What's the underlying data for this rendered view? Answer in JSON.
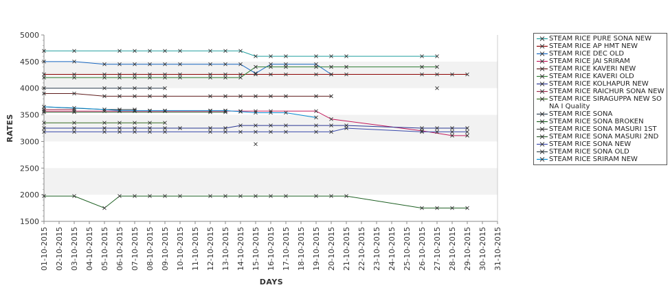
{
  "chart_data": {
    "type": "line",
    "ylabel": "RATES",
    "xlabel": "DAYS",
    "ylim": [
      1500,
      5000
    ],
    "yticks": [
      1500,
      2000,
      2500,
      3000,
      3500,
      4000,
      4500,
      5000
    ],
    "x_categories": [
      "01-10-2015",
      "02-10-2015",
      "03-10-2015",
      "04-10-2015",
      "05-10-2015",
      "06-10-2015",
      "07-10-2015",
      "08-10-2015",
      "09-10-2015",
      "10-10-2015",
      "11-10-2015",
      "12-10-2015",
      "13-10-2015",
      "14-10-2015",
      "15-10-2015",
      "16-10-2015",
      "17-10-2015",
      "18-10-2015",
      "19-10-2015",
      "20-10-2015",
      "21-10-2015",
      "22-10-2015",
      "23-10-2015",
      "24-10-2015",
      "25-10-2015",
      "26-10-2015",
      "27-10-2015",
      "28-10-2015",
      "29-10-2015",
      "30-10-2015",
      "31-10-2015"
    ],
    "grid_bands": true,
    "legend_position": "right",
    "series": [
      {
        "name": " STEAM RICE PURE SONA NEW",
        "color": "#1f9e9e",
        "points": [
          [
            "01-10-2015",
            4700
          ],
          [
            "03-10-2015",
            4700
          ],
          [
            "06-10-2015",
            4700
          ],
          [
            "07-10-2015",
            4700
          ],
          [
            "08-10-2015",
            4700
          ],
          [
            "09-10-2015",
            4700
          ],
          [
            "10-10-2015",
            4700
          ],
          [
            "12-10-2015",
            4700
          ],
          [
            "13-10-2015",
            4700
          ],
          [
            "14-10-2015",
            4700
          ],
          [
            "15-10-2015",
            4600
          ],
          [
            "16-10-2015",
            4600
          ],
          [
            "17-10-2015",
            4600
          ],
          [
            "19-10-2015",
            4600
          ],
          [
            "20-10-2015",
            4600
          ],
          [
            "21-10-2015",
            4600
          ],
          [
            "26-10-2015",
            4600
          ],
          [
            "27-10-2015",
            4600
          ]
        ]
      },
      {
        "name": "STEAM RICE AP HMT NEW",
        "color": "#8b0000",
        "points": [
          [
            "01-10-2015",
            4260
          ],
          [
            "03-10-2015",
            4260
          ],
          [
            "05-10-2015",
            4260
          ],
          [
            "06-10-2015",
            4260
          ],
          [
            "07-10-2015",
            4260
          ],
          [
            "08-10-2015",
            4260
          ],
          [
            "09-10-2015",
            4260
          ],
          [
            "10-10-2015",
            4260
          ],
          [
            "12-10-2015",
            4260
          ],
          [
            "13-10-2015",
            4260
          ],
          [
            "14-10-2015",
            4260
          ],
          [
            "15-10-2015",
            4260
          ],
          [
            "16-10-2015",
            4260
          ],
          [
            "17-10-2015",
            4260
          ],
          [
            "19-10-2015",
            4260
          ],
          [
            "20-10-2015",
            4260
          ],
          [
            "21-10-2015",
            4260
          ],
          [
            "26-10-2015",
            4260
          ],
          [
            "27-10-2015",
            4260
          ],
          [
            "28-10-2015",
            4260
          ],
          [
            "29-10-2015",
            4260
          ]
        ]
      },
      {
        "name": "STEAM RICE DEC OLD",
        "color": "#1565c0",
        "points": [
          [
            "01-10-2015",
            4500
          ],
          [
            "03-10-2015",
            4500
          ],
          [
            "05-10-2015",
            4450
          ],
          [
            "06-10-2015",
            4450
          ],
          [
            "07-10-2015",
            4450
          ],
          [
            "08-10-2015",
            4450
          ],
          [
            "09-10-2015",
            4450
          ],
          [
            "10-10-2015",
            4450
          ],
          [
            "12-10-2015",
            4450
          ],
          [
            "13-10-2015",
            4450
          ],
          [
            "14-10-2015",
            4450
          ],
          [
            "15-10-2015",
            4280
          ],
          [
            "16-10-2015",
            4450
          ],
          [
            "17-10-2015",
            4450
          ],
          [
            "19-10-2015",
            4450
          ],
          [
            "20-10-2015",
            4260
          ]
        ]
      },
      {
        "name": "STEAM RICE JAI SRIRAM",
        "color": "#c2185b",
        "points": [
          [
            "01-10-2015",
            3570
          ],
          [
            "03-10-2015",
            3570
          ],
          [
            "05-10-2015",
            3570
          ],
          [
            "06-10-2015",
            3570
          ],
          [
            "07-10-2015",
            3570
          ],
          [
            "08-10-2015",
            3570
          ],
          [
            "09-10-2015",
            3570
          ],
          [
            "12-10-2015",
            3570
          ],
          [
            "13-10-2015",
            3570
          ],
          [
            "14-10-2015",
            3570
          ],
          [
            "15-10-2015",
            3570
          ],
          [
            "16-10-2015",
            3570
          ],
          [
            "19-10-2015",
            3570
          ],
          [
            "20-10-2015",
            3420
          ],
          [
            "26-10-2015",
            3200
          ],
          [
            "28-10-2015",
            3110
          ],
          [
            "29-10-2015",
            3110
          ]
        ]
      },
      {
        "name": "STEAM RICE KAVERI NEW",
        "color": "#5d1a1a",
        "points": [
          [
            "01-10-2015",
            3900
          ],
          [
            "03-10-2015",
            3900
          ],
          [
            "05-10-2015",
            3850
          ],
          [
            "06-10-2015",
            3850
          ],
          [
            "07-10-2015",
            3850
          ],
          [
            "08-10-2015",
            3850
          ],
          [
            "09-10-2015",
            3850
          ],
          [
            "12-10-2015",
            3850
          ],
          [
            "13-10-2015",
            3850
          ],
          [
            "14-10-2015",
            3850
          ],
          [
            "15-10-2015",
            3850
          ],
          [
            "16-10-2015",
            3850
          ],
          [
            "17-10-2015",
            3850
          ],
          [
            "19-10-2015",
            3850
          ],
          [
            "20-10-2015",
            3850
          ]
        ]
      },
      {
        "name": "STEAM RICE KAVERI OLD",
        "color": "#2e7d32",
        "points": [
          [
            "01-10-2015",
            4200
          ],
          [
            "03-10-2015",
            4200
          ],
          [
            "05-10-2015",
            4200
          ],
          [
            "06-10-2015",
            4200
          ],
          [
            "07-10-2015",
            4200
          ],
          [
            "08-10-2015",
            4200
          ],
          [
            "09-10-2015",
            4200
          ],
          [
            "10-10-2015",
            4200
          ],
          [
            "12-10-2015",
            4200
          ],
          [
            "13-10-2015",
            4200
          ],
          [
            "14-10-2015",
            4200
          ],
          [
            "15-10-2015",
            4400
          ],
          [
            "16-10-2015",
            4400
          ],
          [
            "17-10-2015",
            4400
          ],
          [
            "19-10-2015",
            4400
          ],
          [
            "20-10-2015",
            4400
          ],
          [
            "21-10-2015",
            4400
          ],
          [
            "26-10-2015",
            4400
          ],
          [
            "27-10-2015",
            4400
          ]
        ]
      },
      {
        "name": "STEAM RICE KOLHAPUR NEW",
        "color": "#283593",
        "points": [
          [
            "01-10-2015",
            3250
          ],
          [
            "03-10-2015",
            3250
          ],
          [
            "05-10-2015",
            3250
          ],
          [
            "06-10-2015",
            3250
          ],
          [
            "07-10-2015",
            3250
          ],
          [
            "08-10-2015",
            3250
          ],
          [
            "09-10-2015",
            3250
          ],
          [
            "10-10-2015",
            3250
          ],
          [
            "12-10-2015",
            3250
          ],
          [
            "13-10-2015",
            3250
          ],
          [
            "14-10-2015",
            3300
          ],
          [
            "15-10-2015",
            3300
          ],
          [
            "16-10-2015",
            3300
          ],
          [
            "17-10-2015",
            3300
          ],
          [
            "19-10-2015",
            3300
          ],
          [
            "20-10-2015",
            3300
          ],
          [
            "21-10-2015",
            3300
          ],
          [
            "26-10-2015",
            3250
          ],
          [
            "27-10-2015",
            3250
          ],
          [
            "28-10-2015",
            3250
          ],
          [
            "29-10-2015",
            3250
          ]
        ]
      },
      {
        "name": "STEAM RICE RAICHUR SONA NEW",
        "color": "#9c2a4a",
        "points": [
          [
            "01-10-2015",
            3600
          ],
          [
            "03-10-2015",
            3600
          ]
        ]
      },
      {
        "name": "STEAM RICE SIRAGUPPA NEW SONA I Quality",
        "color": "#33691e",
        "points": [
          [
            "01-10-2015",
            3350
          ],
          [
            "03-10-2015",
            3350
          ],
          [
            "05-10-2015",
            3350
          ],
          [
            "06-10-2015",
            3350
          ],
          [
            "07-10-2015",
            3350
          ],
          [
            "08-10-2015",
            3350
          ],
          [
            "09-10-2015",
            3350
          ]
        ]
      },
      {
        "name": "STEAM RICE SONA",
        "color": "#2c3e50",
        "points": [
          [
            "01-10-2015",
            4000
          ],
          [
            "05-10-2015",
            4000
          ],
          [
            "06-10-2015",
            4000
          ],
          [
            "07-10-2015",
            4000
          ],
          [
            "08-10-2015",
            4000
          ],
          [
            "09-10-2015",
            4000
          ]
        ]
      },
      {
        "name": "STEAM RICE SONA BROKEN",
        "color": "#1b5e20",
        "points": [
          [
            "01-10-2015",
            1975
          ],
          [
            "03-10-2015",
            1975
          ],
          [
            "05-10-2015",
            1750
          ],
          [
            "06-10-2015",
            1975
          ],
          [
            "07-10-2015",
            1975
          ],
          [
            "08-10-2015",
            1975
          ],
          [
            "09-10-2015",
            1975
          ],
          [
            "10-10-2015",
            1975
          ],
          [
            "12-10-2015",
            1975
          ],
          [
            "13-10-2015",
            1975
          ],
          [
            "14-10-2015",
            1975
          ],
          [
            "15-10-2015",
            1975
          ],
          [
            "16-10-2015",
            1975
          ],
          [
            "17-10-2015",
            1975
          ],
          [
            "19-10-2015",
            1975
          ],
          [
            "20-10-2015",
            1975
          ],
          [
            "21-10-2015",
            1975
          ],
          [
            "26-10-2015",
            1750
          ],
          [
            "27-10-2015",
            1750
          ],
          [
            "28-10-2015",
            1750
          ],
          [
            "29-10-2015",
            1750
          ]
        ]
      },
      {
        "name": "STEAM RICE SONA MASURI 1ST",
        "color": "#424242",
        "points": [
          [
            "15-10-2015",
            2950
          ],
          [
            "27-10-2015",
            4000
          ]
        ]
      },
      {
        "name": "STEAM RICE SONA MASURI 2ND",
        "color": "#2e5d2e",
        "points": [
          [
            "01-10-2015",
            3550
          ],
          [
            "03-10-2015",
            3550
          ],
          [
            "12-10-2015",
            3550
          ],
          [
            "13-10-2015",
            3550
          ]
        ]
      },
      {
        "name": "STEAM RICE SONA NEW",
        "color": "#3949ab",
        "points": [
          [
            "01-10-2015",
            3180
          ],
          [
            "03-10-2015",
            3180
          ],
          [
            "05-10-2015",
            3180
          ],
          [
            "06-10-2015",
            3180
          ],
          [
            "07-10-2015",
            3180
          ],
          [
            "08-10-2015",
            3180
          ],
          [
            "09-10-2015",
            3180
          ],
          [
            "12-10-2015",
            3180
          ],
          [
            "13-10-2015",
            3180
          ],
          [
            "14-10-2015",
            3180
          ],
          [
            "15-10-2015",
            3180
          ],
          [
            "16-10-2015",
            3180
          ],
          [
            "17-10-2015",
            3180
          ],
          [
            "19-10-2015",
            3180
          ],
          [
            "20-10-2015",
            3180
          ],
          [
            "21-10-2015",
            3250
          ],
          [
            "26-10-2015",
            3180
          ],
          [
            "27-10-2015",
            3180
          ],
          [
            "28-10-2015",
            3180
          ],
          [
            "29-10-2015",
            3180
          ]
        ]
      },
      {
        "name": "STEAM RICE SONA OLD",
        "color": "#37474f",
        "points": [
          [
            "01-10-2015",
            3650
          ],
          [
            "05-10-2015",
            3600
          ],
          [
            "06-10-2015",
            3600
          ],
          [
            "07-10-2015",
            3600
          ]
        ]
      },
      {
        "name": "STEAM RICE SRIRAM NEW",
        "color": "#0288d1",
        "points": [
          [
            "01-10-2015",
            3650
          ],
          [
            "03-10-2015",
            3630
          ],
          [
            "05-10-2015",
            3600
          ],
          [
            "06-10-2015",
            3580
          ],
          [
            "07-10-2015",
            3580
          ],
          [
            "08-10-2015",
            3580
          ],
          [
            "09-10-2015",
            3580
          ],
          [
            "12-10-2015",
            3580
          ],
          [
            "13-10-2015",
            3580
          ],
          [
            "14-10-2015",
            3560
          ],
          [
            "15-10-2015",
            3540
          ],
          [
            "16-10-2015",
            3540
          ],
          [
            "17-10-2015",
            3540
          ],
          [
            "19-10-2015",
            3450
          ]
        ]
      }
    ]
  },
  "legend": {
    "items": [
      {
        "label": " STEAM RICE PURE SONA NEW",
        "color": "#1f9e9e"
      },
      {
        "label": "STEAM RICE AP HMT NEW",
        "color": "#8b0000"
      },
      {
        "label": "STEAM RICE DEC OLD",
        "color": "#1565c0"
      },
      {
        "label": "STEAM RICE JAI SRIRAM",
        "color": "#c2185b"
      },
      {
        "label": "STEAM RICE KAVERI NEW",
        "color": "#5d1a1a"
      },
      {
        "label": "STEAM RICE KAVERI OLD",
        "color": "#2e7d32"
      },
      {
        "label": "STEAM RICE KOLHAPUR NEW",
        "color": "#283593"
      },
      {
        "label": "STEAM RICE RAICHUR SONA NEW",
        "color": "#9c2a4a"
      },
      {
        "label": "STEAM RICE SIRAGUPPA NEW SONA I Quality",
        "color": "#33691e"
      },
      {
        "label": "STEAM RICE SONA",
        "color": "#2c3e50"
      },
      {
        "label": "STEAM RICE SONA BROKEN",
        "color": "#1b5e20"
      },
      {
        "label": "STEAM RICE SONA MASURI 1ST",
        "color": "#424242"
      },
      {
        "label": "STEAM RICE SONA MASURI 2ND",
        "color": "#2e5d2e"
      },
      {
        "label": "STEAM RICE SONA NEW",
        "color": "#3949ab"
      },
      {
        "label": "STEAM RICE SONA OLD",
        "color": "#37474f"
      },
      {
        "label": "STEAM RICE SRIRAM NEW",
        "color": "#0288d1"
      }
    ]
  }
}
